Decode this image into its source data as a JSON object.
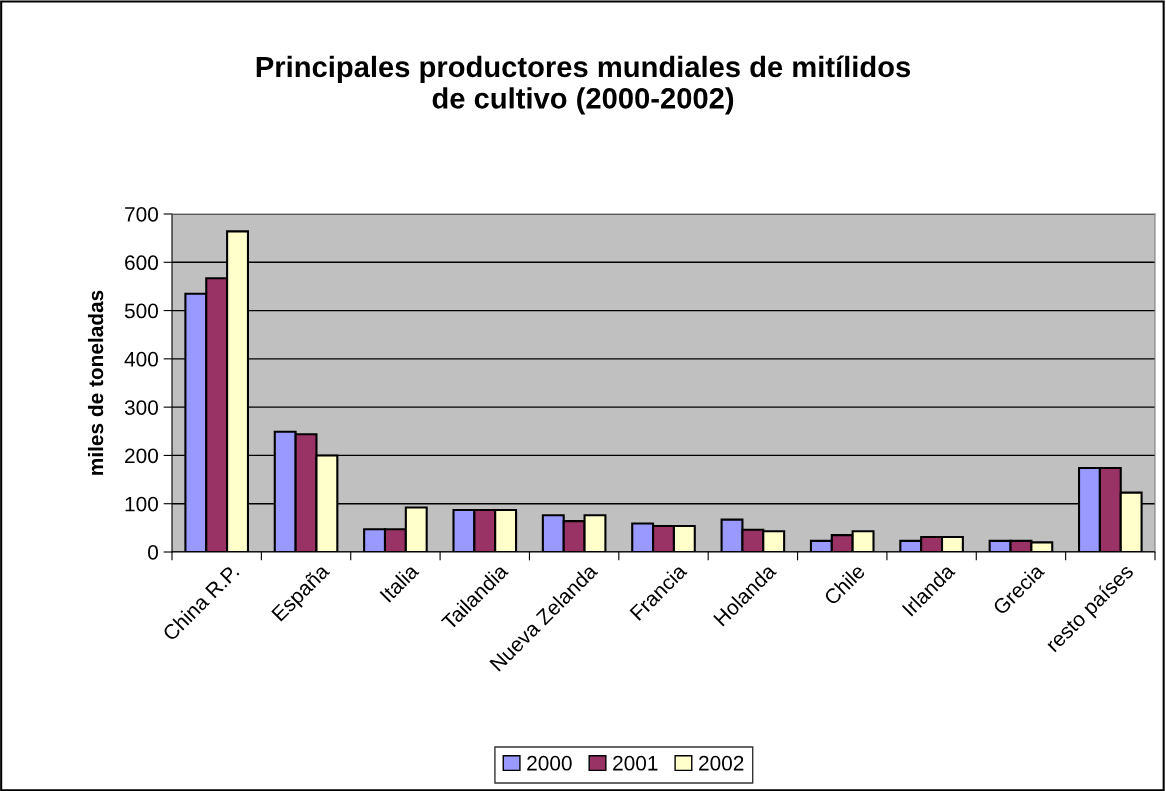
{
  "chart_data": {
    "type": "bar",
    "title": "Principales productores mundiales de mitílidos\nde cultivo (2000-2002)",
    "ylabel": "miles de toneladas",
    "categories": [
      "China R.P.",
      "España",
      "Italia",
      "Tailandia",
      "Nueva Zelanda",
      "Francia",
      "Holanda",
      "Chile",
      "Irlanda",
      "Grecia",
      "resto países"
    ],
    "series": [
      {
        "name": "2000",
        "color": "#9999ff",
        "values": [
          535,
          249,
          47,
          87,
          76,
          59,
          67,
          23,
          23,
          23,
          174
        ]
      },
      {
        "name": "2001",
        "color": "#993366",
        "values": [
          567,
          244,
          47,
          87,
          64,
          54,
          46,
          35,
          31,
          23,
          174
        ]
      },
      {
        "name": "2002",
        "color": "#ffffcc",
        "values": [
          664,
          200,
          92,
          87,
          76,
          54,
          43,
          43,
          31,
          20,
          123
        ]
      }
    ],
    "ylim": [
      0,
      700
    ],
    "yticks": [
      0,
      100,
      200,
      300,
      400,
      500,
      600,
      700
    ],
    "grid": "y",
    "legend": "bottom"
  }
}
